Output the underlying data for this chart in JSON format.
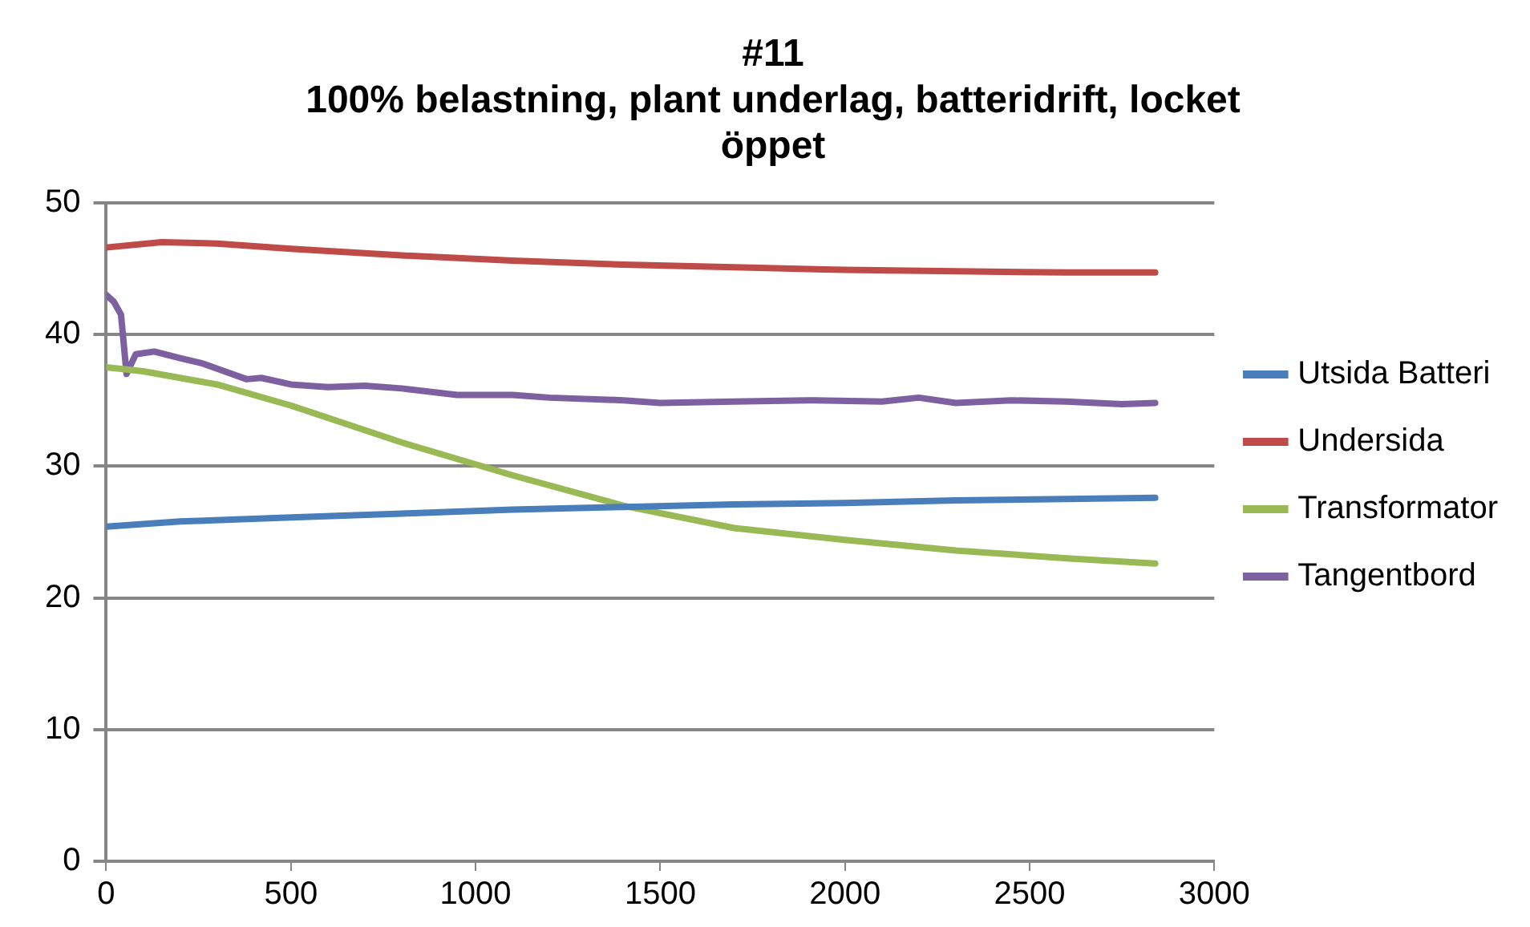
{
  "chart_data": {
    "type": "line",
    "title": "#11",
    "subtitle": "100% belastning, plant underlag, batteridrift, locket öppet",
    "xlim": [
      0,
      3000
    ],
    "xticks": [
      0,
      500,
      1000,
      1500,
      2000,
      2500,
      3000
    ],
    "ylim": [
      0,
      50
    ],
    "yticks": [
      0,
      10,
      20,
      30,
      40,
      50
    ],
    "grid": "y",
    "legend": "right",
    "marker": "none",
    "series": [
      {
        "name": "Utsida Batteri",
        "color": "#4a7ebb",
        "x": [
          0,
          200,
          500,
          800,
          1100,
          1400,
          1700,
          2000,
          2300,
          2600,
          2840
        ],
        "values": [
          25.4,
          25.8,
          26.1,
          26.4,
          26.7,
          26.9,
          27.1,
          27.2,
          27.4,
          27.5,
          27.6
        ]
      },
      {
        "name": "Undersida",
        "color": "#be4b48",
        "x": [
          0,
          150,
          300,
          500,
          800,
          1100,
          1400,
          1700,
          2000,
          2300,
          2600,
          2840
        ],
        "values": [
          46.6,
          47.0,
          46.9,
          46.5,
          46.0,
          45.6,
          45.3,
          45.1,
          44.9,
          44.8,
          44.7,
          44.7
        ]
      },
      {
        "name": "Transformator",
        "color": "#98b954",
        "x": [
          0,
          100,
          300,
          500,
          800,
          1100,
          1400,
          1700,
          2000,
          2300,
          2600,
          2840
        ],
        "values": [
          37.5,
          37.2,
          36.2,
          34.6,
          31.8,
          29.3,
          27.0,
          25.3,
          24.4,
          23.6,
          23.0,
          22.6
        ]
      },
      {
        "name": "Tangentbord",
        "color": "#7d60a0",
        "x": [
          0,
          20,
          40,
          55,
          80,
          130,
          200,
          260,
          320,
          380,
          420,
          500,
          600,
          700,
          800,
          950,
          1100,
          1200,
          1400,
          1500,
          1700,
          1900,
          2100,
          2200,
          2300,
          2450,
          2600,
          2750,
          2840
        ],
        "values": [
          43,
          42.5,
          41.5,
          37,
          38.5,
          38.7,
          38.2,
          37.8,
          37.2,
          36.6,
          36.7,
          36.2,
          36.0,
          36.1,
          35.9,
          35.4,
          35.4,
          35.2,
          35.0,
          34.8,
          34.9,
          35.0,
          34.9,
          35.2,
          34.8,
          35.0,
          34.9,
          34.7,
          34.8
        ]
      }
    ]
  }
}
